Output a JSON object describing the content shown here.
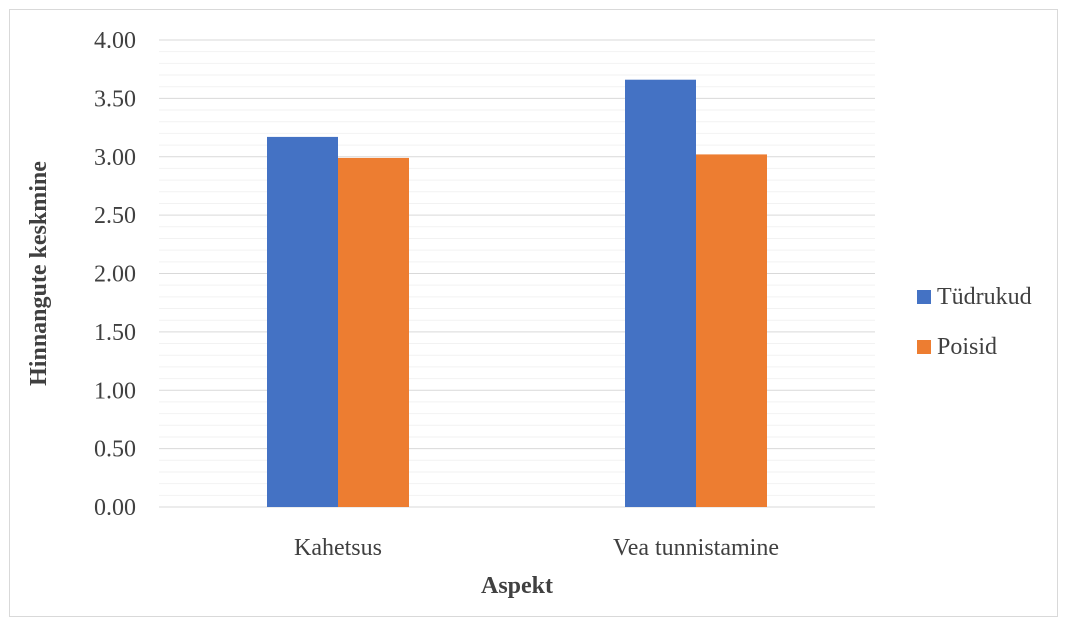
{
  "chart_data": {
    "type": "bar",
    "title": "",
    "xlabel": "Aspekt",
    "ylabel": "Hinnangute keskmine",
    "categories": [
      "Kahetsus",
      "Vea tunnistamine"
    ],
    "series": [
      {
        "name": "Tüdrukud",
        "values": [
          3.17,
          3.66
        ],
        "color": "#4472c4"
      },
      {
        "name": "Poisid",
        "values": [
          2.99,
          3.02
        ],
        "color": "#ed7d31"
      }
    ],
    "ylim": [
      0,
      4
    ],
    "yticks": [
      "0.00",
      "0.50",
      "1.00",
      "1.50",
      "2.00",
      "2.50",
      "3.00",
      "3.50",
      "4.00"
    ],
    "ytick_values": [
      0,
      0.5,
      1,
      1.5,
      2,
      2.5,
      3,
      3.5,
      4
    ],
    "minor_grid_step": 0.1,
    "grid": true,
    "legend_position": "right"
  }
}
